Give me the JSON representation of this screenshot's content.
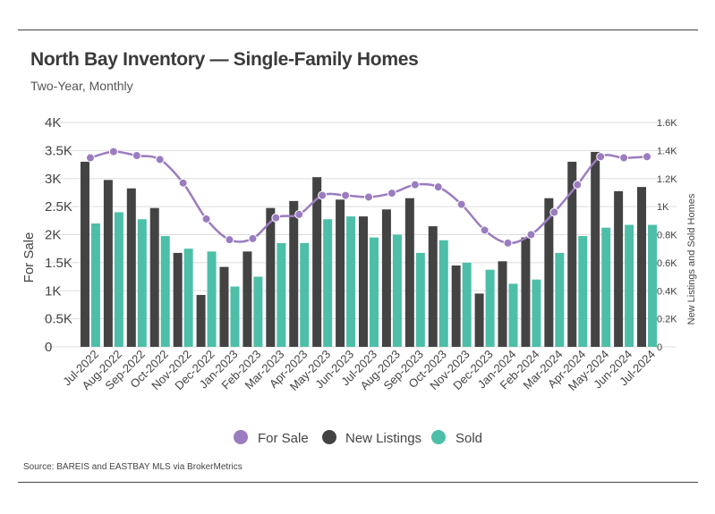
{
  "header": {
    "title": "North Bay Inventory — Single-Family Homes",
    "subtitle": "Two-Year, Monthly"
  },
  "footer": {
    "source": "Source:  BAREIS and EASTBAY MLS via BrokerMetrics"
  },
  "colors": {
    "for_sale": "#9b7cc0",
    "new_listings": "#434343",
    "sold": "#4dbfa8",
    "grid": "#dddddd"
  },
  "chart_data": {
    "type": "bar",
    "categories": [
      "Jul-2022",
      "Aug-2022",
      "Sep-2022",
      "Oct-2022",
      "Nov-2022",
      "Dec-2022",
      "Jan-2023",
      "Feb-2023",
      "Mar-2023",
      "Apr-2023",
      "May-2023",
      "Jun-2023",
      "Jul-2023",
      "Aug-2023",
      "Sep-2023",
      "Oct-2023",
      "Nov-2023",
      "Dec-2023",
      "Jan-2024",
      "Feb-2024",
      "Mar-2024",
      "Apr-2024",
      "May-2024",
      "Jun-2024",
      "Jul-2024"
    ],
    "series": [
      {
        "name": "For Sale",
        "kind": "line",
        "axis": "left",
        "values": [
          3370,
          3480,
          3410,
          3340,
          2920,
          2280,
          1910,
          1930,
          2300,
          2360,
          2700,
          2700,
          2670,
          2740,
          2890,
          2850,
          2540,
          2080,
          1850,
          2000,
          2400,
          2890,
          3390,
          3370,
          3390
        ]
      },
      {
        "name": "New Listings",
        "kind": "bar",
        "axis": "right",
        "values": [
          1.32,
          1.19,
          1.13,
          0.99,
          0.67,
          0.37,
          0.57,
          0.68,
          0.99,
          1.04,
          1.21,
          1.05,
          0.93,
          0.98,
          1.06,
          0.86,
          0.58,
          0.38,
          0.61,
          0.78,
          1.06,
          1.32,
          1.39,
          1.11,
          1.14
        ]
      },
      {
        "name": "Sold",
        "kind": "bar",
        "axis": "right",
        "values": [
          0.88,
          0.96,
          0.91,
          0.79,
          0.7,
          0.68,
          0.43,
          0.5,
          0.74,
          0.74,
          0.91,
          0.93,
          0.78,
          0.8,
          0.67,
          0.76,
          0.6,
          0.55,
          0.45,
          0.48,
          0.67,
          0.79,
          0.85,
          0.87,
          0.87
        ]
      }
    ],
    "y_left": {
      "label": "For Sale",
      "ticks": [
        "4K",
        "3.5K",
        "3K",
        "2.5K",
        "2K",
        "1.5K",
        "1K",
        "0.5K",
        "0"
      ],
      "range": [
        0,
        4000
      ]
    },
    "y_right": {
      "label": "New Listings and Sold Homes",
      "ticks": [
        "1.6K",
        "1.4K",
        "1.2K",
        "1K",
        "0.8K",
        "0.6K",
        "0.4K",
        "0.2K",
        "0"
      ],
      "range": [
        0,
        1.6
      ]
    },
    "grid": true,
    "legend": {
      "placement": "bottom",
      "items": [
        "For Sale",
        "New Listings",
        "Sold"
      ]
    }
  }
}
